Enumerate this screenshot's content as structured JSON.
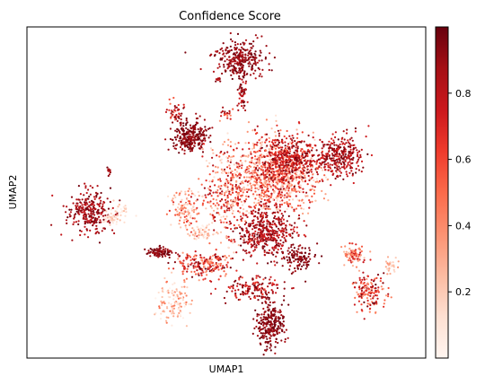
{
  "chart_data": {
    "type": "scatter",
    "title": "Confidence Score",
    "xlabel": "UMAP1",
    "ylabel": "UMAP2",
    "x_ticks_shown": false,
    "y_ticks_shown": false,
    "grid": false,
    "colormap": "Reds",
    "color_range": [
      0.0,
      1.0
    ],
    "colorbar_ticks": [
      "0.2",
      "0.4",
      "0.6",
      "0.8"
    ],
    "colorbar_tick_values": [
      0.2,
      0.4,
      0.6,
      0.8
    ],
    "clusters": [
      {
        "cx": 0.155,
        "cy": 0.56,
        "rx": 0.045,
        "ry": 0.055,
        "n": 260,
        "conf": [
          0.75,
          1.0
        ]
      },
      {
        "cx": 0.215,
        "cy": 0.575,
        "rx": 0.03,
        "ry": 0.02,
        "n": 40,
        "conf": [
          0.0,
          0.3
        ]
      },
      {
        "cx": 0.23,
        "cy": 0.55,
        "rx": 0.02,
        "ry": 0.015,
        "n": 20,
        "conf": [
          0.0,
          0.25
        ]
      },
      {
        "cx": 0.205,
        "cy": 0.435,
        "rx": 0.006,
        "ry": 0.012,
        "n": 12,
        "conf": [
          0.8,
          1.0
        ]
      },
      {
        "cx": 0.53,
        "cy": 0.1,
        "rx": 0.055,
        "ry": 0.045,
        "n": 300,
        "conf": [
          0.8,
          1.0
        ]
      },
      {
        "cx": 0.54,
        "cy": 0.2,
        "rx": 0.01,
        "ry": 0.045,
        "n": 50,
        "conf": [
          0.7,
          1.0
        ]
      },
      {
        "cx": 0.41,
        "cy": 0.33,
        "rx": 0.035,
        "ry": 0.04,
        "n": 260,
        "conf": [
          0.85,
          1.0
        ]
      },
      {
        "cx": 0.37,
        "cy": 0.255,
        "rx": 0.015,
        "ry": 0.03,
        "n": 40,
        "conf": [
          0.5,
          1.0
        ]
      },
      {
        "cx": 0.33,
        "cy": 0.68,
        "rx": 0.028,
        "ry": 0.012,
        "n": 90,
        "conf": [
          0.85,
          1.0
        ]
      },
      {
        "cx": 0.62,
        "cy": 0.45,
        "rx": 0.09,
        "ry": 0.09,
        "n": 900,
        "conf": [
          0.1,
          0.8
        ]
      },
      {
        "cx": 0.66,
        "cy": 0.4,
        "rx": 0.06,
        "ry": 0.06,
        "n": 400,
        "conf": [
          0.6,
          1.0
        ]
      },
      {
        "cx": 0.78,
        "cy": 0.39,
        "rx": 0.05,
        "ry": 0.05,
        "n": 300,
        "conf": [
          0.7,
          1.0
        ]
      },
      {
        "cx": 0.6,
        "cy": 0.62,
        "rx": 0.06,
        "ry": 0.06,
        "n": 420,
        "conf": [
          0.7,
          1.0
        ]
      },
      {
        "cx": 0.5,
        "cy": 0.5,
        "rx": 0.05,
        "ry": 0.12,
        "n": 300,
        "conf": [
          0.1,
          0.9
        ]
      },
      {
        "cx": 0.45,
        "cy": 0.72,
        "rx": 0.06,
        "ry": 0.03,
        "n": 200,
        "conf": [
          0.3,
          1.0
        ]
      },
      {
        "cx": 0.57,
        "cy": 0.79,
        "rx": 0.06,
        "ry": 0.03,
        "n": 150,
        "conf": [
          0.6,
          1.0
        ]
      },
      {
        "cx": 0.68,
        "cy": 0.7,
        "rx": 0.035,
        "ry": 0.03,
        "n": 120,
        "conf": [
          0.85,
          1.0
        ]
      },
      {
        "cx": 0.61,
        "cy": 0.9,
        "rx": 0.032,
        "ry": 0.06,
        "n": 260,
        "conf": [
          0.85,
          1.0
        ]
      },
      {
        "cx": 0.37,
        "cy": 0.83,
        "rx": 0.035,
        "ry": 0.05,
        "n": 120,
        "conf": [
          0.0,
          0.5
        ]
      },
      {
        "cx": 0.4,
        "cy": 0.55,
        "rx": 0.03,
        "ry": 0.05,
        "n": 110,
        "conf": [
          0.1,
          0.7
        ]
      },
      {
        "cx": 0.44,
        "cy": 0.62,
        "rx": 0.03,
        "ry": 0.02,
        "n": 60,
        "conf": [
          0.0,
          0.4
        ]
      },
      {
        "cx": 0.86,
        "cy": 0.8,
        "rx": 0.03,
        "ry": 0.045,
        "n": 150,
        "conf": [
          0.3,
          1.0
        ]
      },
      {
        "cx": 0.82,
        "cy": 0.69,
        "rx": 0.025,
        "ry": 0.025,
        "n": 80,
        "conf": [
          0.2,
          0.8
        ]
      },
      {
        "cx": 0.91,
        "cy": 0.72,
        "rx": 0.015,
        "ry": 0.02,
        "n": 30,
        "conf": [
          0.1,
          0.4
        ]
      },
      {
        "cx": 0.48,
        "cy": 0.16,
        "rx": 0.008,
        "ry": 0.008,
        "n": 10,
        "conf": [
          0.7,
          1.0
        ]
      },
      {
        "cx": 0.5,
        "cy": 0.26,
        "rx": 0.012,
        "ry": 0.012,
        "n": 20,
        "conf": [
          0.4,
          0.9
        ]
      }
    ]
  }
}
